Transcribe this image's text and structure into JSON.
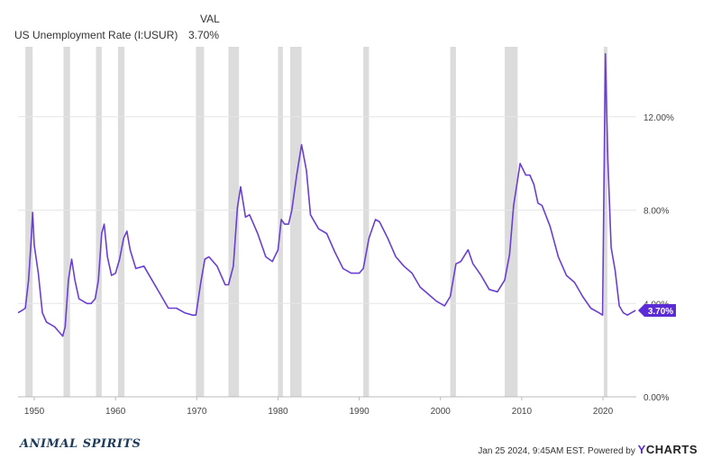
{
  "legend": {
    "header": "VAL",
    "series_name": "US Unemployment Rate (I:USUR)",
    "series_value": "3.70%"
  },
  "footer": {
    "brand": "ANIMAL SPIRITS",
    "source_text": "Jan 25 2024, 9:45AM EST. Powered by",
    "source_brand_y": "Y",
    "source_brand_rest": "CHARTS"
  },
  "colors": {
    "line": "#6a3fd1",
    "recession": "#dcdcdc",
    "grid": "#e6e6e6",
    "badge_bg": "#5b2bd6",
    "badge_text": "#ffffff"
  },
  "chart_data": {
    "type": "line",
    "title": "",
    "xlabel": "",
    "ylabel": "",
    "xlim": [
      1948,
      2024.1
    ],
    "ylim": [
      0,
      15
    ],
    "y_ticks": [
      0,
      4,
      8,
      12
    ],
    "y_tick_labels": [
      "0.00%",
      "4.00%",
      "8.00%",
      "12.00%"
    ],
    "x_ticks": [
      1950,
      1960,
      1970,
      1980,
      1990,
      2000,
      2010,
      2020
    ],
    "x_tick_labels": [
      "1950",
      "1960",
      "1970",
      "1980",
      "1990",
      "2000",
      "2010",
      "2020"
    ],
    "end_label": "3.70%",
    "grid": true,
    "legend_placement": "top-left",
    "recessions": [
      [
        1948.9,
        1949.8
      ],
      [
        1953.6,
        1954.4
      ],
      [
        1957.6,
        1958.3
      ],
      [
        1960.3,
        1961.1
      ],
      [
        1969.9,
        1970.9
      ],
      [
        1973.9,
        1975.2
      ],
      [
        1980.0,
        1980.6
      ],
      [
        1981.5,
        1982.9
      ],
      [
        1990.5,
        1991.2
      ],
      [
        2001.2,
        2001.9
      ],
      [
        2007.9,
        2009.5
      ],
      [
        2020.1,
        2020.4
      ]
    ],
    "series": [
      {
        "values": [
          [
            1948.0,
            3.6
          ],
          [
            1948.5,
            3.7
          ],
          [
            1948.9,
            3.8
          ],
          [
            1949.3,
            5.0
          ],
          [
            1949.6,
            6.6
          ],
          [
            1949.8,
            7.9
          ],
          [
            1950.0,
            6.5
          ],
          [
            1950.5,
            5.3
          ],
          [
            1951.0,
            3.6
          ],
          [
            1951.5,
            3.2
          ],
          [
            1952.0,
            3.1
          ],
          [
            1952.5,
            3.0
          ],
          [
            1953.0,
            2.8
          ],
          [
            1953.5,
            2.6
          ],
          [
            1953.8,
            3.0
          ],
          [
            1954.2,
            5.0
          ],
          [
            1954.6,
            5.9
          ],
          [
            1955.0,
            5.0
          ],
          [
            1955.5,
            4.2
          ],
          [
            1956.0,
            4.1
          ],
          [
            1956.5,
            4.0
          ],
          [
            1957.0,
            4.0
          ],
          [
            1957.5,
            4.2
          ],
          [
            1957.9,
            5.0
          ],
          [
            1958.3,
            7.0
          ],
          [
            1958.6,
            7.4
          ],
          [
            1959.0,
            6.0
          ],
          [
            1959.5,
            5.2
          ],
          [
            1960.0,
            5.3
          ],
          [
            1960.5,
            5.9
          ],
          [
            1961.0,
            6.8
          ],
          [
            1961.4,
            7.1
          ],
          [
            1961.8,
            6.3
          ],
          [
            1962.5,
            5.5
          ],
          [
            1963.5,
            5.6
          ],
          [
            1964.5,
            5.0
          ],
          [
            1965.5,
            4.4
          ],
          [
            1966.5,
            3.8
          ],
          [
            1967.5,
            3.8
          ],
          [
            1968.5,
            3.6
          ],
          [
            1969.5,
            3.5
          ],
          [
            1969.9,
            3.5
          ],
          [
            1970.5,
            4.9
          ],
          [
            1971.0,
            5.9
          ],
          [
            1971.5,
            6.0
          ],
          [
            1972.5,
            5.6
          ],
          [
            1973.5,
            4.8
          ],
          [
            1973.9,
            4.8
          ],
          [
            1974.5,
            5.6
          ],
          [
            1975.0,
            8.1
          ],
          [
            1975.4,
            9.0
          ],
          [
            1976.0,
            7.7
          ],
          [
            1976.5,
            7.8
          ],
          [
            1977.5,
            7.0
          ],
          [
            1978.5,
            6.0
          ],
          [
            1979.3,
            5.8
          ],
          [
            1980.0,
            6.3
          ],
          [
            1980.4,
            7.6
          ],
          [
            1980.8,
            7.4
          ],
          [
            1981.3,
            7.4
          ],
          [
            1981.7,
            8.0
          ],
          [
            1982.3,
            9.5
          ],
          [
            1982.9,
            10.8
          ],
          [
            1983.5,
            9.7
          ],
          [
            1984.0,
            7.8
          ],
          [
            1985.0,
            7.2
          ],
          [
            1986.0,
            7.0
          ],
          [
            1987.0,
            6.2
          ],
          [
            1988.0,
            5.5
          ],
          [
            1989.0,
            5.3
          ],
          [
            1990.0,
            5.3
          ],
          [
            1990.5,
            5.5
          ],
          [
            1991.2,
            6.8
          ],
          [
            1992.0,
            7.6
          ],
          [
            1992.5,
            7.5
          ],
          [
            1993.5,
            6.8
          ],
          [
            1994.5,
            6.0
          ],
          [
            1995.5,
            5.6
          ],
          [
            1996.5,
            5.3
          ],
          [
            1997.5,
            4.7
          ],
          [
            1998.5,
            4.4
          ],
          [
            1999.5,
            4.1
          ],
          [
            2000.5,
            3.9
          ],
          [
            2001.2,
            4.3
          ],
          [
            2001.9,
            5.7
          ],
          [
            2002.5,
            5.8
          ],
          [
            2003.4,
            6.3
          ],
          [
            2004.0,
            5.7
          ],
          [
            2005.0,
            5.2
          ],
          [
            2006.0,
            4.6
          ],
          [
            2007.0,
            4.5
          ],
          [
            2007.9,
            5.0
          ],
          [
            2008.5,
            6.1
          ],
          [
            2009.0,
            8.2
          ],
          [
            2009.8,
            10.0
          ],
          [
            2010.5,
            9.5
          ],
          [
            2011.0,
            9.5
          ],
          [
            2011.5,
            9.1
          ],
          [
            2012.0,
            8.3
          ],
          [
            2012.5,
            8.2
          ],
          [
            2013.5,
            7.3
          ],
          [
            2014.5,
            6.0
          ],
          [
            2015.5,
            5.2
          ],
          [
            2016.5,
            4.9
          ],
          [
            2017.5,
            4.3
          ],
          [
            2018.5,
            3.8
          ],
          [
            2019.5,
            3.6
          ],
          [
            2019.95,
            3.5
          ],
          [
            2020.3,
            14.7
          ],
          [
            2020.6,
            10.2
          ],
          [
            2021.0,
            6.4
          ],
          [
            2021.5,
            5.4
          ],
          [
            2022.0,
            3.9
          ],
          [
            2022.5,
            3.6
          ],
          [
            2023.0,
            3.5
          ],
          [
            2023.5,
            3.6
          ],
          [
            2024.0,
            3.7
          ]
        ]
      }
    ]
  }
}
